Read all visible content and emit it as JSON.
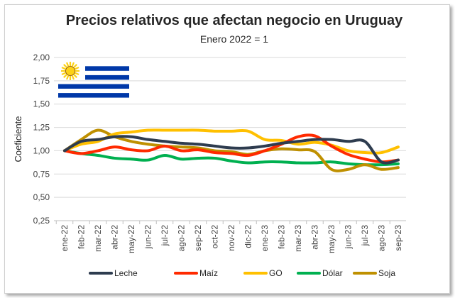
{
  "chart_data": {
    "type": "line",
    "title": "Precios relativos que afectan negocio en Uruguay",
    "subtitle": "Enero 2022 = 1",
    "ylabel": "Coeficiente",
    "xlabel": "",
    "ylim": [
      0.25,
      2.0
    ],
    "yticks": [
      "0,25",
      "0,50",
      "0,75",
      "1,00",
      "1,25",
      "1,50",
      "1,75",
      "2,00"
    ],
    "categories": [
      "ene-22",
      "feb-22",
      "mar-22",
      "abr-22",
      "may-22",
      "jun-22",
      "jul-22",
      "ago-22",
      "sep-22",
      "oct-22",
      "nov-22",
      "dic-22",
      "ene-23",
      "feb-23",
      "mar-23",
      "abr-23",
      "may-23",
      "jun-23",
      "jul-23",
      "ago-23",
      "sep-23"
    ],
    "grid": true,
    "legend_position": "bottom",
    "series": [
      {
        "name": "Leche",
        "color": "#2e3c4f",
        "values": [
          1.0,
          1.1,
          1.12,
          1.15,
          1.15,
          1.12,
          1.1,
          1.08,
          1.07,
          1.05,
          1.03,
          1.03,
          1.05,
          1.08,
          1.1,
          1.12,
          1.12,
          1.1,
          1.1,
          0.88,
          0.9
        ]
      },
      {
        "name": "Maíz",
        "color": "#ff2a00",
        "values": [
          1.0,
          0.97,
          1.0,
          1.04,
          1.01,
          1.0,
          1.05,
          1.0,
          1.01,
          0.98,
          0.97,
          0.95,
          1.0,
          1.07,
          1.15,
          1.16,
          1.05,
          0.96,
          0.91,
          0.88,
          0.9
        ]
      },
      {
        "name": "GO",
        "color": "#ffc000",
        "values": [
          1.0,
          1.07,
          1.1,
          1.18,
          1.2,
          1.22,
          1.22,
          1.22,
          1.22,
          1.21,
          1.21,
          1.21,
          1.12,
          1.11,
          1.07,
          1.09,
          1.06,
          1.0,
          0.98,
          0.98,
          1.04
        ]
      },
      {
        "name": "Dólar",
        "color": "#00b050",
        "values": [
          1.0,
          0.97,
          0.95,
          0.92,
          0.91,
          0.9,
          0.95,
          0.91,
          0.92,
          0.92,
          0.89,
          0.87,
          0.88,
          0.88,
          0.87,
          0.87,
          0.88,
          0.86,
          0.85,
          0.85,
          0.86
        ]
      },
      {
        "name": "Soja",
        "color": "#bf9000",
        "values": [
          1.0,
          1.12,
          1.22,
          1.15,
          1.1,
          1.07,
          1.05,
          1.04,
          1.03,
          1.0,
          0.99,
          0.96,
          1.0,
          1.02,
          1.01,
          0.99,
          0.8,
          0.8,
          0.85,
          0.8,
          0.82
        ]
      }
    ]
  },
  "flag": {
    "description_colors": {
      "stripe": "#0038a8",
      "sun": "#fcd116",
      "sun_outline": "#7b3f00"
    }
  }
}
